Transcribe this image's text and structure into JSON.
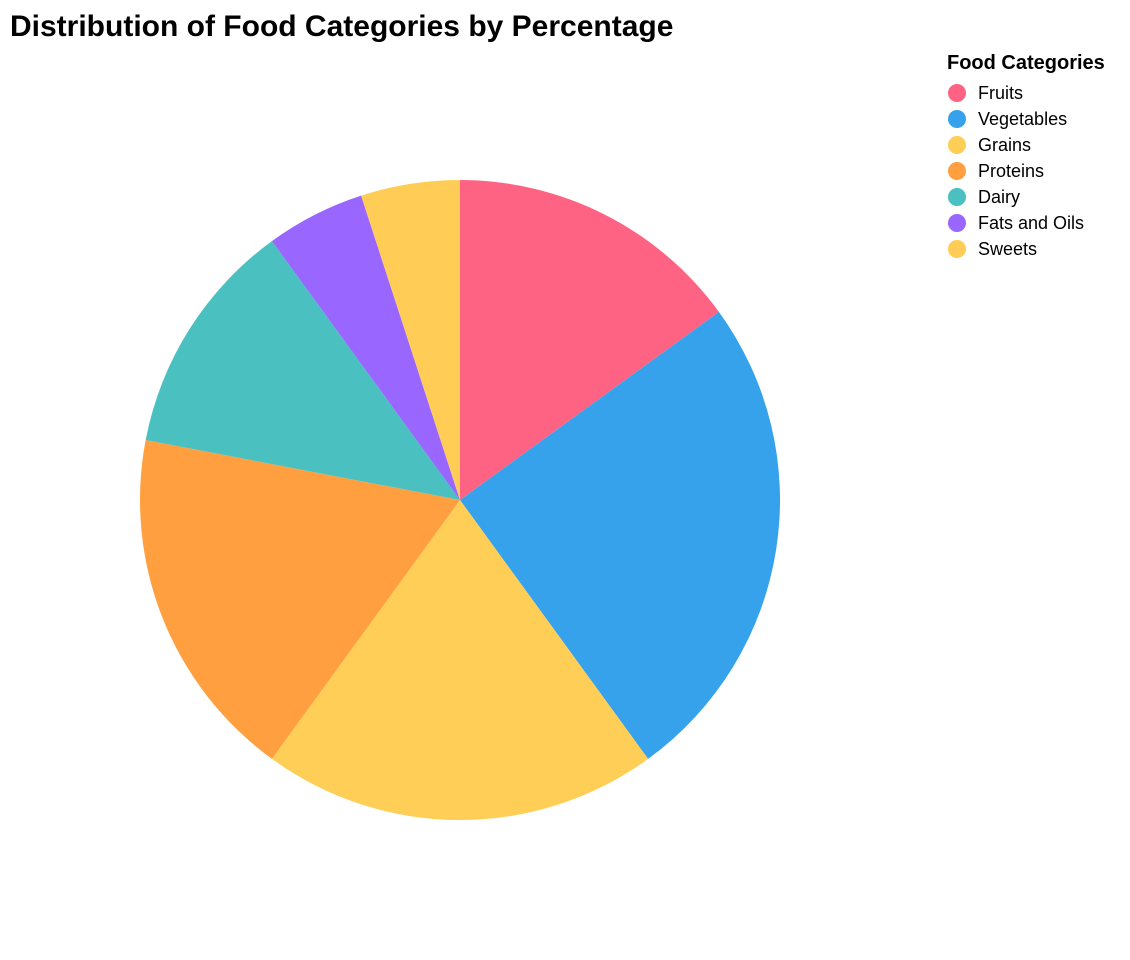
{
  "chart_data": {
    "type": "pie",
    "title": "Distribution of Food Categories by Percentage",
    "legend": {
      "title": "Food Categories",
      "position": "top-right"
    },
    "start_angle_deg": 90,
    "direction": "clockwise",
    "slices": [
      {
        "label": "Fruits",
        "value": 15,
        "color": "#FF6384"
      },
      {
        "label": "Vegetables",
        "value": 25,
        "color": "#36A2EB"
      },
      {
        "label": "Grains",
        "value": 20,
        "color": "#FFCE56"
      },
      {
        "label": "Proteins",
        "value": 18,
        "color": "#FF9F40"
      },
      {
        "label": "Dairy",
        "value": 12,
        "color": "#4BC0C0"
      },
      {
        "label": "Fats and Oils",
        "value": 5,
        "color": "#9966FF"
      },
      {
        "label": "Sweets",
        "value": 5,
        "color": "#FFCD56"
      }
    ]
  }
}
